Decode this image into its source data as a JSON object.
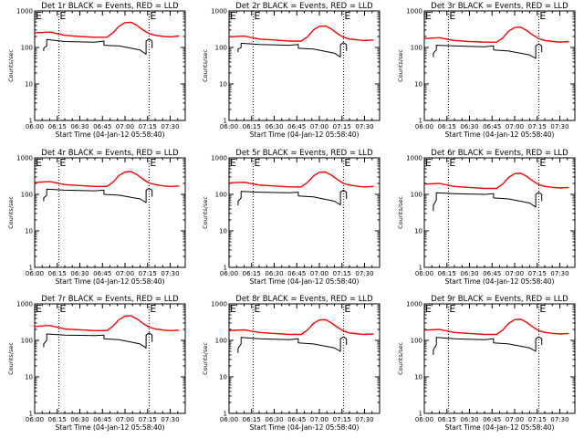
{
  "series_colors": {
    "events": "#000000",
    "lld": "#ff0000"
  },
  "chart_data": [
    {
      "type": "line",
      "title": "Det 1r BLACK = Events, RED = LLD",
      "ylabel": "Counts/sec",
      "xlabel": "Start Time (04-Jan-12 05:58:40)",
      "yscale": "log",
      "ylim": [
        1,
        1000
      ],
      "yticks": [
        "1",
        "10",
        "100",
        "1000"
      ],
      "xlim": [
        "06:00",
        "07:40"
      ],
      "xticks": [
        "06:00",
        "06:15",
        "06:30",
        "06:45",
        "07:00",
        "07:15",
        "07:30"
      ],
      "markers": [
        {
          "time": "06:16",
          "label": "E"
        },
        {
          "time": "07:16",
          "label": "E"
        }
      ],
      "series": [
        {
          "x": [
            "06:00",
            "06:10",
            "06:20",
            "06:30",
            "06:40",
            "06:48",
            "06:52",
            "06:56",
            "07:00",
            "07:04",
            "07:08",
            "07:12",
            "07:16",
            "07:20",
            "07:26",
            "07:30",
            "07:36"
          ],
          "values": [
            250,
            265,
            215,
            200,
            190,
            190,
            250,
            380,
            480,
            490,
            400,
            300,
            240,
            215,
            200,
            195,
            205
          ]
        },
        {
          "x": [
            "06:06",
            "06:06",
            "06:08",
            "06:08",
            "06:20",
            "06:40",
            "06:46",
            "06:46",
            "06:56",
            "07:10",
            "07:14",
            "07:14",
            "07:16",
            "07:18",
            "07:18"
          ],
          "values": [
            80,
            95,
            110,
            165,
            145,
            140,
            150,
            115,
            110,
            85,
            65,
            150,
            170,
            150,
            95
          ]
        }
      ]
    },
    {
      "type": "line",
      "title": "Det 2r BLACK = Events, RED = LLD",
      "ylabel": "Counts/sec",
      "xlabel": "Start Time (04-Jan-12 05:58:40)",
      "yscale": "log",
      "ylim": [
        1,
        1000
      ],
      "yticks": [
        "1",
        "10",
        "100",
        "1000"
      ],
      "xlim": [
        "06:00",
        "07:40"
      ],
      "xticks": [
        "06:00",
        "06:15",
        "06:30",
        "06:45",
        "07:00",
        "07:15",
        "07:30"
      ],
      "markers": [
        {
          "time": "06:16",
          "label": "E"
        },
        {
          "time": "07:16",
          "label": "E"
        }
      ],
      "series": [
        {
          "x": [
            "06:00",
            "06:10",
            "06:20",
            "06:30",
            "06:40",
            "06:48",
            "06:52",
            "06:56",
            "07:00",
            "07:04",
            "07:08",
            "07:12",
            "07:16",
            "07:20",
            "07:26",
            "07:30",
            "07:36"
          ],
          "values": [
            195,
            205,
            170,
            160,
            150,
            150,
            195,
            300,
            380,
            390,
            320,
            240,
            190,
            170,
            160,
            155,
            160
          ]
        },
        {
          "x": [
            "06:06",
            "06:06",
            "06:08",
            "06:08",
            "06:20",
            "06:40",
            "06:46",
            "06:46",
            "06:56",
            "07:10",
            "07:14",
            "07:14",
            "07:16",
            "07:18",
            "07:18"
          ],
          "values": [
            75,
            90,
            100,
            130,
            120,
            115,
            120,
            95,
            90,
            70,
            55,
            120,
            135,
            120,
            80
          ]
        }
      ]
    },
    {
      "type": "line",
      "title": "Det 3r BLACK = Events, RED = LLD",
      "ylabel": "Counts/sec",
      "xlabel": "Start Time (04-Jan-12 05:58:40)",
      "yscale": "log",
      "ylim": [
        1,
        1000
      ],
      "yticks": [
        "1",
        "10",
        "100",
        "1000"
      ],
      "xlim": [
        "06:00",
        "07:40"
      ],
      "xticks": [
        "06:00",
        "06:15",
        "06:30",
        "06:45",
        "07:00",
        "07:15",
        "07:30"
      ],
      "markers": [
        {
          "time": "06:16",
          "label": "E"
        },
        {
          "time": "07:16",
          "label": "E"
        }
      ],
      "series": [
        {
          "x": [
            "06:00",
            "06:10",
            "06:20",
            "06:30",
            "06:40",
            "06:48",
            "06:52",
            "06:56",
            "07:00",
            "07:04",
            "07:08",
            "07:12",
            "07:16",
            "07:20",
            "07:26",
            "07:30",
            "07:36"
          ],
          "values": [
            175,
            185,
            155,
            145,
            140,
            140,
            180,
            280,
            350,
            360,
            290,
            220,
            175,
            155,
            145,
            140,
            145
          ]
        },
        {
          "x": [
            "06:06",
            "06:06",
            "06:08",
            "06:08",
            "06:20",
            "06:40",
            "06:46",
            "06:46",
            "06:56",
            "07:10",
            "07:14",
            "07:14",
            "07:16",
            "07:18",
            "07:18"
          ],
          "values": [
            55,
            70,
            85,
            115,
            110,
            105,
            110,
            85,
            80,
            62,
            50,
            110,
            125,
            110,
            75
          ]
        }
      ]
    },
    {
      "type": "line",
      "title": "Det 4r BLACK = Events, RED = LLD",
      "ylabel": "Counts/sec",
      "xlabel": "Start Time (04-Jan-12 05:58:40)",
      "yscale": "log",
      "ylim": [
        1,
        1000
      ],
      "yticks": [
        "1",
        "10",
        "100",
        "1000"
      ],
      "xlim": [
        "06:00",
        "07:40"
      ],
      "xticks": [
        "06:00",
        "06:15",
        "06:30",
        "06:45",
        "07:00",
        "07:15",
        "07:30"
      ],
      "markers": [
        {
          "time": "06:16",
          "label": "E"
        },
        {
          "time": "07:16",
          "label": "E"
        }
      ],
      "series": [
        {
          "x": [
            "06:00",
            "06:10",
            "06:20",
            "06:30",
            "06:40",
            "06:48",
            "06:52",
            "06:56",
            "07:00",
            "07:04",
            "07:08",
            "07:12",
            "07:16",
            "07:20",
            "07:26",
            "07:30",
            "07:36"
          ],
          "values": [
            210,
            225,
            185,
            175,
            165,
            165,
            215,
            330,
            410,
            420,
            345,
            260,
            205,
            185,
            170,
            165,
            170
          ]
        },
        {
          "x": [
            "06:06",
            "06:06",
            "06:08",
            "06:08",
            "06:20",
            "06:40",
            "06:46",
            "06:46",
            "06:56",
            "07:10",
            "07:14",
            "07:14",
            "07:16",
            "07:18",
            "07:18"
          ],
          "values": [
            65,
            80,
            95,
            140,
            130,
            125,
            130,
            100,
            95,
            75,
            60,
            130,
            145,
            130,
            85
          ]
        }
      ]
    },
    {
      "type": "line",
      "title": "Det 5r BLACK = Events, RED = LLD",
      "ylabel": "Counts/sec",
      "xlabel": "Start Time (04-Jan-12 05:58:40)",
      "yscale": "log",
      "ylim": [
        1,
        1000
      ],
      "yticks": [
        "1",
        "10",
        "100",
        "1000"
      ],
      "xlim": [
        "06:00",
        "07:40"
      ],
      "xticks": [
        "06:00",
        "06:15",
        "06:30",
        "06:45",
        "07:00",
        "07:15",
        "07:30"
      ],
      "markers": [
        {
          "time": "06:16",
          "label": "E"
        },
        {
          "time": "07:16",
          "label": "E"
        }
      ],
      "series": [
        {
          "x": [
            "06:00",
            "06:10",
            "06:20",
            "06:30",
            "06:40",
            "06:48",
            "06:52",
            "06:56",
            "07:00",
            "07:04",
            "07:08",
            "07:12",
            "07:16",
            "07:20",
            "07:26",
            "07:30",
            "07:36"
          ],
          "values": [
            205,
            215,
            180,
            170,
            160,
            160,
            210,
            320,
            400,
            410,
            335,
            255,
            200,
            180,
            165,
            160,
            165
          ]
        },
        {
          "x": [
            "06:06",
            "06:06",
            "06:08",
            "06:08",
            "06:20",
            "06:40",
            "06:46",
            "06:46",
            "06:56",
            "07:10",
            "07:14",
            "07:14",
            "07:16",
            "07:18",
            "07:18"
          ],
          "values": [
            50,
            65,
            80,
            120,
            115,
            110,
            115,
            90,
            85,
            65,
            52,
            115,
            130,
            115,
            75
          ]
        }
      ]
    },
    {
      "type": "line",
      "title": "Det 6r BLACK = Events, RED = LLD",
      "ylabel": "Counts/sec",
      "xlabel": "Start Time (04-Jan-12 05:58:40)",
      "yscale": "log",
      "ylim": [
        1,
        1000
      ],
      "yticks": [
        "1",
        "10",
        "100",
        "1000"
      ],
      "xlim": [
        "06:00",
        "07:40"
      ],
      "xticks": [
        "06:00",
        "06:15",
        "06:30",
        "06:45",
        "07:00",
        "07:15",
        "07:30"
      ],
      "markers": [
        {
          "time": "06:16",
          "label": "E"
        },
        {
          "time": "07:16",
          "label": "E"
        }
      ],
      "series": [
        {
          "x": [
            "06:00",
            "06:10",
            "06:20",
            "06:30",
            "06:40",
            "06:48",
            "06:52",
            "06:56",
            "07:00",
            "07:04",
            "07:08",
            "07:12",
            "07:16",
            "07:20",
            "07:26",
            "07:30",
            "07:36"
          ],
          "values": [
            190,
            200,
            165,
            155,
            145,
            145,
            190,
            290,
            370,
            380,
            310,
            235,
            185,
            165,
            155,
            150,
            155
          ]
        },
        {
          "x": [
            "06:06",
            "06:06",
            "06:08",
            "06:08",
            "06:20",
            "06:40",
            "06:46",
            "06:46",
            "06:56",
            "07:10",
            "07:14",
            "07:14",
            "07:16",
            "07:18",
            "07:18"
          ],
          "values": [
            35,
            50,
            70,
            110,
            105,
            100,
            105,
            80,
            75,
            58,
            45,
            100,
            115,
            100,
            65
          ]
        }
      ]
    },
    {
      "type": "line",
      "title": "Det 7r BLACK = Events, RED = LLD",
      "ylabel": "Counts/sec",
      "xlabel": "Start Time (04-Jan-12 05:58:40)",
      "yscale": "log",
      "ylim": [
        1,
        1000
      ],
      "yticks": [
        "1",
        "10",
        "100",
        "1000"
      ],
      "xlim": [
        "06:00",
        "07:40"
      ],
      "xticks": [
        "06:00",
        "06:15",
        "06:30",
        "06:45",
        "07:00",
        "07:15",
        "07:30"
      ],
      "markers": [
        {
          "time": "06:16",
          "label": "E"
        },
        {
          "time": "07:16",
          "label": "E"
        }
      ],
      "series": [
        {
          "x": [
            "06:00",
            "06:10",
            "06:20",
            "06:30",
            "06:40",
            "06:48",
            "06:52",
            "06:56",
            "07:00",
            "07:04",
            "07:08",
            "07:12",
            "07:16",
            "07:20",
            "07:26",
            "07:30",
            "07:36"
          ],
          "values": [
            240,
            255,
            205,
            195,
            185,
            185,
            245,
            370,
            460,
            470,
            385,
            290,
            230,
            205,
            190,
            185,
            190
          ]
        },
        {
          "x": [
            "06:06",
            "06:06",
            "06:08",
            "06:08",
            "06:20",
            "06:40",
            "06:46",
            "06:46",
            "06:56",
            "07:10",
            "07:14",
            "07:14",
            "07:16",
            "07:18",
            "07:18"
          ],
          "values": [
            65,
            80,
            100,
            150,
            140,
            135,
            140,
            110,
            105,
            80,
            62,
            140,
            160,
            140,
            90
          ]
        }
      ]
    },
    {
      "type": "line",
      "title": "Det 8r BLACK = Events, RED = LLD",
      "ylabel": "Counts/sec",
      "xlabel": "Start Time (04-Jan-12 05:58:40)",
      "yscale": "log",
      "ylim": [
        1,
        1000
      ],
      "yticks": [
        "1",
        "10",
        "100",
        "1000"
      ],
      "xlim": [
        "06:00",
        "07:40"
      ],
      "xticks": [
        "06:00",
        "06:15",
        "06:30",
        "06:45",
        "07:00",
        "07:15",
        "07:30"
      ],
      "markers": [
        {
          "time": "06:16",
          "label": "E"
        },
        {
          "time": "07:16",
          "label": "E"
        }
      ],
      "series": [
        {
          "x": [
            "06:00",
            "06:10",
            "06:20",
            "06:30",
            "06:40",
            "06:48",
            "06:52",
            "06:56",
            "07:00",
            "07:04",
            "07:08",
            "07:12",
            "07:16",
            "07:20",
            "07:26",
            "07:30",
            "07:36"
          ],
          "values": [
            185,
            195,
            165,
            155,
            145,
            145,
            190,
            290,
            360,
            370,
            300,
            230,
            180,
            160,
            150,
            145,
            150
          ]
        },
        {
          "x": [
            "06:06",
            "06:06",
            "06:08",
            "06:08",
            "06:20",
            "06:40",
            "06:46",
            "06:46",
            "06:56",
            "07:10",
            "07:14",
            "07:14",
            "07:16",
            "07:18",
            "07:18"
          ],
          "values": [
            45,
            60,
            80,
            120,
            110,
            105,
            110,
            85,
            80,
            62,
            50,
            110,
            125,
            110,
            75
          ]
        }
      ]
    },
    {
      "type": "line",
      "title": "Det 9r BLACK = Events, RED = LLD",
      "ylabel": "Counts/sec",
      "xlabel": "Start Time (04-Jan-12 05:58:40)",
      "yscale": "log",
      "ylim": [
        1,
        1000
      ],
      "yticks": [
        "1",
        "10",
        "100",
        "1000"
      ],
      "xlim": [
        "06:00",
        "07:40"
      ],
      "xticks": [
        "06:00",
        "06:15",
        "06:30",
        "06:45",
        "07:00",
        "07:15",
        "07:30"
      ],
      "markers": [
        {
          "time": "06:16",
          "label": "E"
        },
        {
          "time": "07:16",
          "label": "E"
        }
      ],
      "series": [
        {
          "x": [
            "06:00",
            "06:10",
            "06:20",
            "06:30",
            "06:40",
            "06:48",
            "06:52",
            "06:56",
            "07:00",
            "07:04",
            "07:08",
            "07:12",
            "07:16",
            "07:20",
            "07:26",
            "07:30",
            "07:36"
          ],
          "values": [
            190,
            200,
            165,
            155,
            145,
            145,
            190,
            290,
            370,
            380,
            310,
            235,
            185,
            165,
            155,
            150,
            155
          ]
        },
        {
          "x": [
            "06:06",
            "06:06",
            "06:08",
            "06:08",
            "06:20",
            "06:40",
            "06:46",
            "06:46",
            "06:56",
            "07:10",
            "07:14",
            "07:14",
            "07:16",
            "07:18",
            "07:18"
          ],
          "values": [
            40,
            55,
            75,
            120,
            110,
            105,
            110,
            85,
            80,
            62,
            50,
            110,
            125,
            110,
            75
          ]
        }
      ]
    }
  ]
}
